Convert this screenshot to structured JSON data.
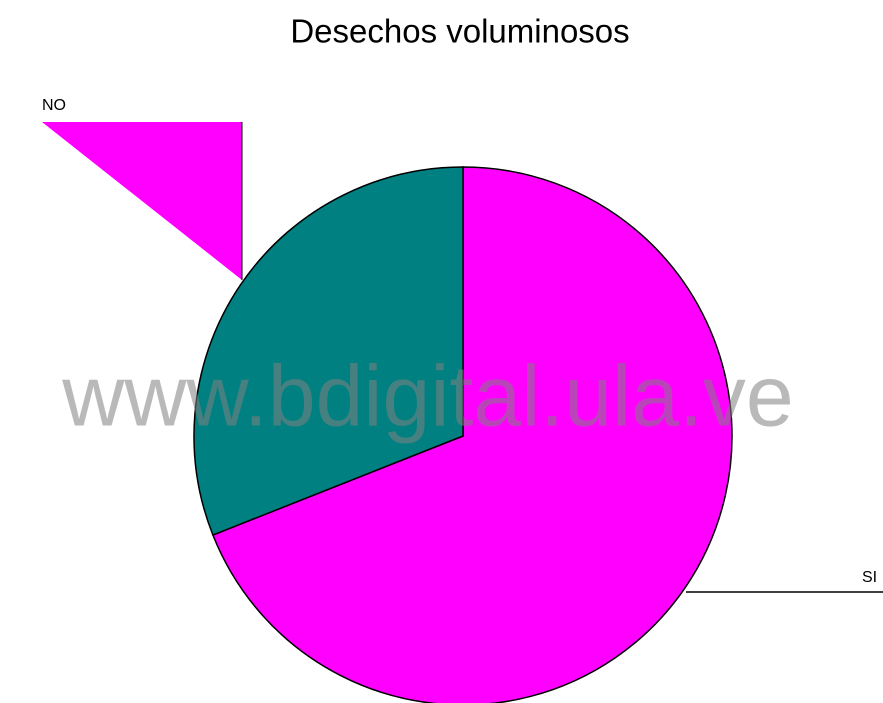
{
  "chart_data": {
    "type": "pie",
    "title": "Desechos voluminosos",
    "categories": [
      "SI",
      "NO"
    ],
    "values": [
      69,
      31
    ],
    "colors": [
      "#ff00ff",
      "#008080"
    ],
    "watermark": "www.bdigital.ula.ve"
  }
}
